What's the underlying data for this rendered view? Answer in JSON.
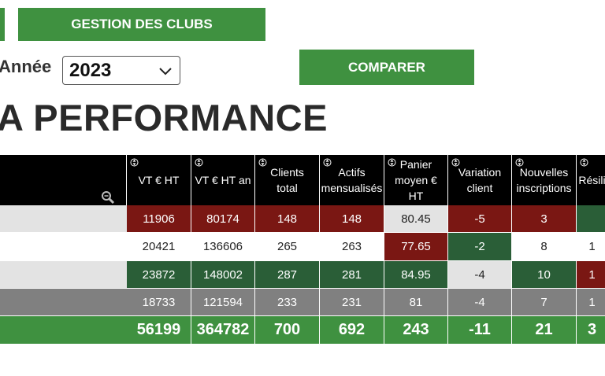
{
  "header": {
    "gestion_label": "GESTION DES CLUBS",
    "comparer_label": "COMPARER",
    "annee_label": "Année",
    "year_selected": "2023",
    "page_title": "A PERFORMANCE"
  },
  "colors": {
    "green": "#3f9140",
    "dark_red": "#7a1713",
    "dark_green": "#2a5e37",
    "gray": "#808080",
    "light_gray": "#e3e3e3",
    "white": "#ffffff"
  },
  "table": {
    "columns": [
      "VT € HT",
      "VT € HT an",
      "Clients\ntotal",
      "Actifs\nmensualisés",
      "Panier\nmoyen €\nHT",
      "Variation\nclient",
      "Nouvelles\ninscriptions",
      "Résili"
    ],
    "rows": [
      {
        "values": [
          "11906",
          "80174",
          "148",
          "148",
          "80.45",
          "-5",
          "3",
          ""
        ],
        "colors": [
          "dark_red",
          "dark_red",
          "dark_red",
          "dark_red",
          "light_gray",
          "dark_red",
          "dark_red",
          "dark_green"
        ]
      },
      {
        "values": [
          "20421",
          "136606",
          "265",
          "263",
          "77.65",
          "-2",
          "8",
          "1"
        ],
        "colors": [
          "white",
          "white",
          "white",
          "white",
          "dark_red",
          "dark_green",
          "white",
          "white"
        ]
      },
      {
        "values": [
          "23872",
          "148002",
          "287",
          "281",
          "84.95",
          "-4",
          "10",
          "1"
        ],
        "colors": [
          "dark_green",
          "dark_green",
          "dark_green",
          "dark_green",
          "dark_green",
          "light_gray",
          "dark_green",
          "dark_red"
        ]
      },
      {
        "values": [
          "18733",
          "121594",
          "233",
          "231",
          "81",
          "-4",
          "7",
          "1"
        ],
        "colors": [
          "gray",
          "gray",
          "gray",
          "gray",
          "gray",
          "gray",
          "gray",
          "gray"
        ]
      }
    ],
    "row_label_colors": [
      "light_gray",
      "white",
      "light_gray",
      "gray"
    ],
    "totals": [
      "56199",
      "364782",
      "700",
      "692",
      "243",
      "-11",
      "21",
      "3"
    ]
  }
}
